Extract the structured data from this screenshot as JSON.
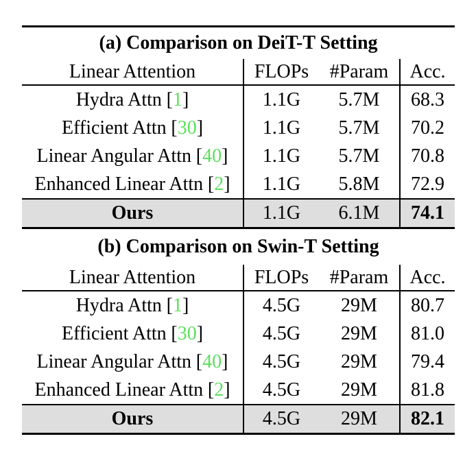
{
  "colors": {
    "citation_green": "#5cdf5c",
    "highlight_row_background": "#dedede",
    "rule_color": "#000000"
  },
  "punct": {
    "cite_open": "[",
    "cite_close": "]"
  },
  "tables": [
    {
      "caption": "(a) Comparison on DeiT-T Setting",
      "headers": [
        "Linear Attention",
        "FLOPs",
        "#Param",
        "Acc."
      ],
      "rows": [
        {
          "method": "Hydra Attn",
          "cite": "1",
          "flops": "1.1G",
          "params": "5.7M",
          "acc": "68.3"
        },
        {
          "method": "Efficient Attn",
          "cite": "30",
          "flops": "1.1G",
          "params": "5.7M",
          "acc": "70.2"
        },
        {
          "method": "Linear Angular Attn",
          "cite": "40",
          "flops": "1.1G",
          "params": "5.7M",
          "acc": "70.8"
        },
        {
          "method": "Enhanced Linear Attn",
          "cite": "2",
          "flops": "1.1G",
          "params": "5.8M",
          "acc": "72.9"
        }
      ],
      "ours": {
        "method": "Ours",
        "flops": "1.1G",
        "params": "6.1M",
        "acc": "74.1"
      }
    },
    {
      "caption": "(b) Comparison on Swin-T Setting",
      "headers": [
        "Linear Attention",
        "FLOPs",
        "#Param",
        "Acc."
      ],
      "rows": [
        {
          "method": "Hydra Attn",
          "cite": "1",
          "flops": "4.5G",
          "params": "29M",
          "acc": "80.7"
        },
        {
          "method": "Efficient Attn",
          "cite": "30",
          "flops": "4.5G",
          "params": "29M",
          "acc": "81.0"
        },
        {
          "method": "Linear Angular Attn",
          "cite": "40",
          "flops": "4.5G",
          "params": "29M",
          "acc": "79.4"
        },
        {
          "method": "Enhanced Linear Attn",
          "cite": "2",
          "flops": "4.5G",
          "params": "29M",
          "acc": "81.8"
        }
      ],
      "ours": {
        "method": "Ours",
        "flops": "4.5G",
        "params": "29M",
        "acc": "82.1"
      }
    }
  ]
}
